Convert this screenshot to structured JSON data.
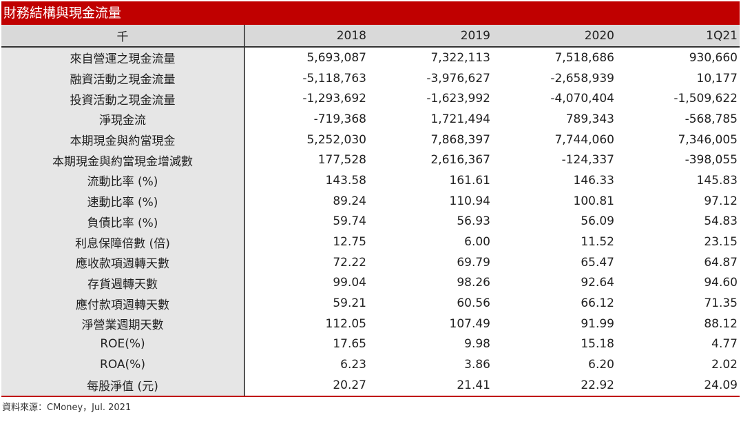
{
  "title": "財務結構與現金流量",
  "header": {
    "unit": "千",
    "years": [
      "2018",
      "2019",
      "2020",
      "1Q21"
    ]
  },
  "rows": [
    {
      "label": "來自營運之現金流量",
      "values": [
        "5,693,087",
        "7,322,113",
        "7,518,686",
        "930,660"
      ]
    },
    {
      "label": "融資活動之現金流量",
      "values": [
        "-5,118,763",
        "-3,976,627",
        "-2,658,939",
        "10,177"
      ]
    },
    {
      "label": "投資活動之現金流量",
      "values": [
        "-1,293,692",
        "-1,623,992",
        "-4,070,404",
        "-1,509,622"
      ]
    },
    {
      "label": "淨現金流",
      "values": [
        "-719,368",
        "1,721,494",
        "789,343",
        "-568,785"
      ]
    },
    {
      "label": "本期現金與約當現金",
      "values": [
        "5,252,030",
        "7,868,397",
        "7,744,060",
        "7,346,005"
      ]
    },
    {
      "label": "本期現金與約當現金增減數",
      "values": [
        "177,528",
        "2,616,367",
        "-124,337",
        "-398,055"
      ]
    },
    {
      "label": "流動比率 (%)",
      "values": [
        "143.58",
        "161.61",
        "146.33",
        "145.83"
      ]
    },
    {
      "label": "速動比率 (%)",
      "values": [
        "89.24",
        "110.94",
        "100.81",
        "97.12"
      ]
    },
    {
      "label": "負債比率 (%)",
      "values": [
        "59.74",
        "56.93",
        "56.09",
        "54.83"
      ]
    },
    {
      "label": "利息保障倍數 (倍)",
      "values": [
        "12.75",
        "6.00",
        "11.52",
        "23.15"
      ]
    },
    {
      "label": "應收款項週轉天數",
      "values": [
        "72.22",
        "69.79",
        "65.47",
        "64.87"
      ]
    },
    {
      "label": "存貨週轉天數",
      "values": [
        "99.04",
        "98.26",
        "92.64",
        "94.60"
      ]
    },
    {
      "label": "應付款項週轉天數",
      "values": [
        "59.21",
        "60.56",
        "66.12",
        "71.35"
      ]
    },
    {
      "label": "淨營業週期天數",
      "values": [
        "112.05",
        "107.49",
        "91.99",
        "88.12"
      ]
    },
    {
      "label": "ROE(%)",
      "values": [
        "17.65",
        "9.98",
        "15.18",
        "4.77"
      ]
    },
    {
      "label": "ROA(%)",
      "values": [
        "6.23",
        "3.86",
        "6.20",
        "2.02"
      ]
    },
    {
      "label": "每股淨值 (元)",
      "values": [
        "20.27",
        "21.41",
        "22.92",
        "24.09"
      ]
    }
  ],
  "source": "資料來源：CMoney，Jul. 2021",
  "colors": {
    "title_bg": "#c00000",
    "header_bg": "#d9d9d9",
    "label_bg": "#e6e6e6"
  }
}
